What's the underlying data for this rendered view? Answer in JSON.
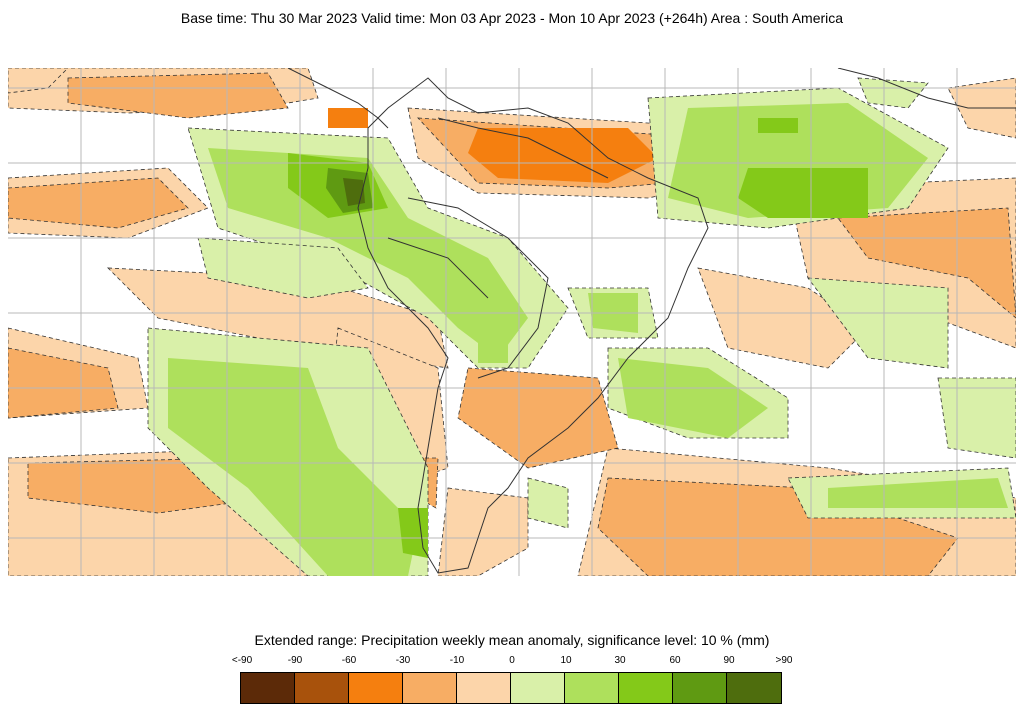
{
  "header": {
    "title": "Base time: Thu 30 Mar 2023 Valid time: Mon 03 Apr 2023 - Mon 10 Apr 2023 (+264h) Area : South America"
  },
  "legend": {
    "title": "Extended range: Precipitation weekly mean anomaly, significance level: 10 % (mm)",
    "labels": [
      "<-90",
      "-90",
      "-60",
      "-30",
      "-10",
      "0",
      "10",
      "30",
      "60",
      "90",
      ">90"
    ],
    "colors": [
      "#5c2a08",
      "#a8520c",
      "#f57f0f",
      "#f7ad64",
      "#fcd5aa",
      "#d9f0a9",
      "#aee05c",
      "#84c919",
      "#5f9a12",
      "#4e6d0d"
    ]
  },
  "map": {
    "region": "South America",
    "colors": {
      "land_outline": "#333333",
      "grid": "#b8b8b8",
      "background": "#ffffff"
    }
  }
}
